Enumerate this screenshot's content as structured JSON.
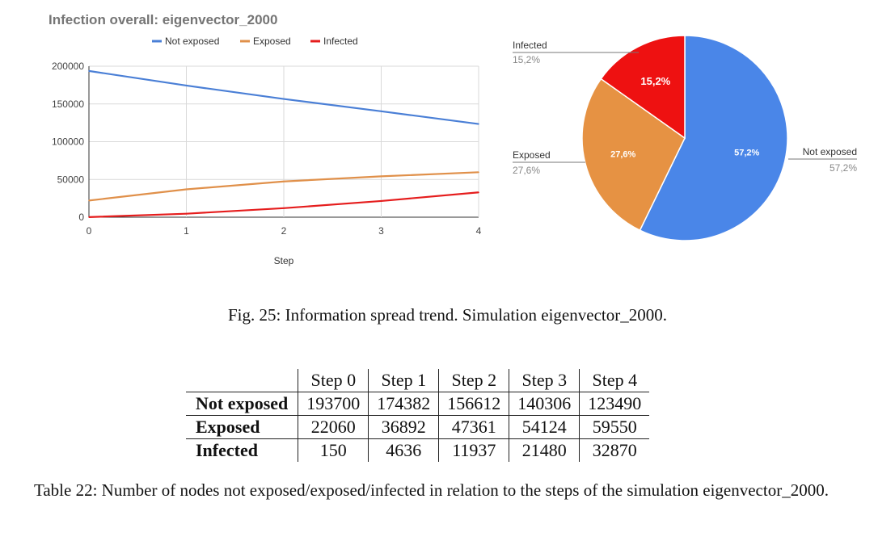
{
  "chart_data": [
    {
      "type": "line",
      "title": "Infection overall: eigenvector_2000",
      "xlabel": "Step",
      "ylabel": "",
      "x": [
        0,
        1,
        2,
        3,
        4
      ],
      "xlim": [
        0,
        4
      ],
      "ylim": [
        0,
        200000
      ],
      "yticks": [
        "0",
        "50000",
        "100000",
        "150000",
        "200000"
      ],
      "xticks": [
        "0",
        "1",
        "2",
        "3",
        "4"
      ],
      "grid": true,
      "legend": "top",
      "series": [
        {
          "name": "Not exposed",
          "color": "#4a7fd6",
          "values": [
            193700,
            174382,
            156612,
            140306,
            123490
          ]
        },
        {
          "name": "Exposed",
          "color": "#e0904a",
          "values": [
            22060,
            36892,
            47361,
            54124,
            59550
          ]
        },
        {
          "name": "Infected",
          "color": "#e51d1d",
          "values": [
            150,
            4636,
            11937,
            21480,
            32870
          ]
        }
      ]
    },
    {
      "type": "pie",
      "slices": [
        {
          "name": "Not exposed",
          "value": 57.2,
          "label": "57,2%",
          "color": "#4a86e8"
        },
        {
          "name": "Exposed",
          "value": 27.6,
          "label": "27,6%",
          "color": "#e69243"
        },
        {
          "name": "Infected",
          "value": 15.2,
          "label": "15,2%",
          "color": "#ee1111"
        }
      ]
    }
  ],
  "figure_caption": "Fig. 25: Information spread trend. Simulation eigenvector_2000.",
  "table": {
    "headers": [
      "Step 0",
      "Step 1",
      "Step 2",
      "Step 3",
      "Step 4"
    ],
    "rows": [
      {
        "label": "Not exposed",
        "values": [
          "193700",
          "174382",
          "156612",
          "140306",
          "123490"
        ]
      },
      {
        "label": "Exposed",
        "values": [
          "22060",
          "36892",
          "47361",
          "54124",
          "59550"
        ]
      },
      {
        "label": "Infected",
        "values": [
          "150",
          "4636",
          "11937",
          "21480",
          "32870"
        ]
      }
    ]
  },
  "table_caption": "Table 22: Number of nodes not exposed/exposed/infected in relation to the steps of the simulation eigenvector_2000."
}
